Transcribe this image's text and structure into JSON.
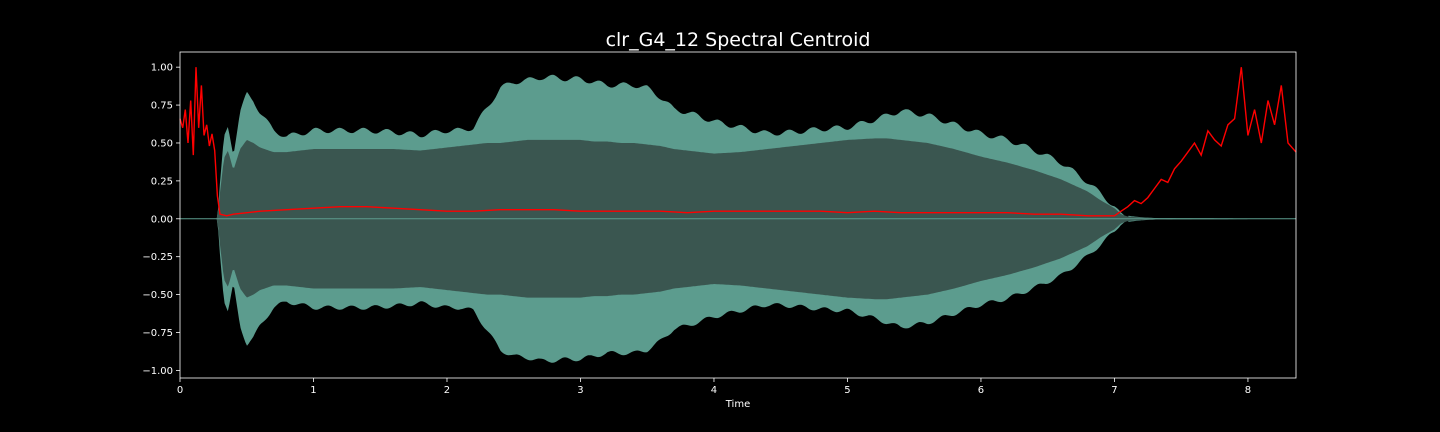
{
  "chart_data": {
    "type": "line",
    "title": "clr_G4_12 Spectral Centroid",
    "xlabel": "Time",
    "ylabel": "",
    "xlim": [
      0,
      8.36
    ],
    "ylim": [
      -1.05,
      1.1
    ],
    "xticks": [
      0,
      1,
      2,
      3,
      4,
      5,
      6,
      7,
      8
    ],
    "xtick_labels": [
      "0",
      "1",
      "2",
      "3",
      "4",
      "5",
      "6",
      "7",
      "8"
    ],
    "yticks": [
      1.0,
      0.75,
      0.5,
      0.25,
      0.0,
      -0.25,
      -0.5,
      -0.75,
      -1.0
    ],
    "ytick_labels": [
      "1.00",
      "0.75",
      "0.50",
      "0.25",
      "0.00",
      "−0.25",
      "−0.50",
      "−0.75",
      "−1.00"
    ],
    "grid": false,
    "background": "#000000",
    "series": [
      {
        "kind": "waveform-envelope",
        "color": "#5c9c8e",
        "fill_inner": "#3a5650",
        "x": [
          0,
          0.28,
          0.3,
          0.33,
          0.36,
          0.4,
          0.45,
          0.5,
          0.55,
          0.6,
          0.7,
          0.8,
          0.9,
          1.0,
          1.2,
          1.4,
          1.6,
          1.8,
          2.0,
          2.1,
          2.2,
          2.3,
          2.4,
          2.5,
          2.6,
          2.7,
          2.8,
          2.9,
          3.0,
          3.1,
          3.2,
          3.3,
          3.4,
          3.5,
          3.6,
          3.7,
          3.8,
          4.0,
          4.2,
          4.4,
          4.6,
          4.8,
          5.0,
          5.2,
          5.3,
          5.4,
          5.6,
          5.8,
          6.0,
          6.2,
          6.4,
          6.6,
          6.8,
          6.9,
          7.0,
          7.05,
          7.1,
          7.2,
          7.3,
          8.36
        ],
        "peak": [
          0.0,
          0.0,
          0.25,
          0.55,
          0.63,
          0.45,
          0.72,
          0.84,
          0.8,
          0.72,
          0.6,
          0.56,
          0.58,
          0.6,
          0.6,
          0.6,
          0.59,
          0.57,
          0.6,
          0.6,
          0.62,
          0.75,
          0.88,
          0.92,
          0.93,
          0.95,
          0.95,
          0.94,
          0.94,
          0.92,
          0.9,
          0.9,
          0.9,
          0.88,
          0.82,
          0.74,
          0.72,
          0.66,
          0.62,
          0.58,
          0.59,
          0.61,
          0.62,
          0.67,
          0.7,
          0.73,
          0.7,
          0.64,
          0.58,
          0.54,
          0.47,
          0.39,
          0.26,
          0.18,
          0.1,
          0.04,
          0.02,
          0.01,
          0.005,
          0.0
        ],
        "inner": [
          0.0,
          0.0,
          0.18,
          0.4,
          0.45,
          0.32,
          0.46,
          0.52,
          0.5,
          0.47,
          0.44,
          0.44,
          0.45,
          0.46,
          0.46,
          0.46,
          0.46,
          0.45,
          0.47,
          0.48,
          0.49,
          0.5,
          0.5,
          0.51,
          0.52,
          0.52,
          0.52,
          0.52,
          0.52,
          0.51,
          0.51,
          0.5,
          0.5,
          0.49,
          0.48,
          0.46,
          0.45,
          0.43,
          0.44,
          0.46,
          0.48,
          0.5,
          0.52,
          0.53,
          0.53,
          0.52,
          0.5,
          0.46,
          0.41,
          0.37,
          0.32,
          0.26,
          0.18,
          0.12,
          0.07,
          0.03,
          0.015,
          0.008,
          0.004,
          0.0
        ]
      },
      {
        "kind": "centroid",
        "color": "#ff0000",
        "x": [
          0,
          0.02,
          0.04,
          0.06,
          0.08,
          0.1,
          0.12,
          0.14,
          0.16,
          0.18,
          0.2,
          0.22,
          0.24,
          0.26,
          0.28,
          0.3,
          0.35,
          0.4,
          0.6,
          0.8,
          1.0,
          1.2,
          1.4,
          1.6,
          1.8,
          2.0,
          2.2,
          2.4,
          2.6,
          2.8,
          3.0,
          3.2,
          3.4,
          3.6,
          3.8,
          4.0,
          4.2,
          4.4,
          4.6,
          4.8,
          5.0,
          5.2,
          5.4,
          5.6,
          5.8,
          6.0,
          6.2,
          6.4,
          6.6,
          6.8,
          7.0,
          7.05,
          7.1,
          7.15,
          7.2,
          7.25,
          7.3,
          7.35,
          7.4,
          7.45,
          7.5,
          7.55,
          7.6,
          7.65,
          7.7,
          7.75,
          7.8,
          7.85,
          7.9,
          7.95,
          8.0,
          8.05,
          8.1,
          8.15,
          8.2,
          8.25,
          8.3,
          8.36
        ],
        "values": [
          0.66,
          0.6,
          0.72,
          0.5,
          0.78,
          0.42,
          1.0,
          0.6,
          0.88,
          0.55,
          0.62,
          0.48,
          0.56,
          0.45,
          0.15,
          0.03,
          0.02,
          0.03,
          0.05,
          0.06,
          0.07,
          0.08,
          0.08,
          0.07,
          0.06,
          0.05,
          0.05,
          0.06,
          0.06,
          0.06,
          0.05,
          0.05,
          0.05,
          0.05,
          0.04,
          0.05,
          0.05,
          0.05,
          0.05,
          0.05,
          0.04,
          0.05,
          0.04,
          0.04,
          0.04,
          0.04,
          0.04,
          0.03,
          0.03,
          0.02,
          0.02,
          0.05,
          0.08,
          0.12,
          0.1,
          0.14,
          0.2,
          0.26,
          0.24,
          0.33,
          0.38,
          0.44,
          0.5,
          0.42,
          0.58,
          0.52,
          0.48,
          0.62,
          0.66,
          1.0,
          0.55,
          0.72,
          0.5,
          0.78,
          0.62,
          0.88,
          0.5,
          0.44
        ]
      }
    ]
  }
}
